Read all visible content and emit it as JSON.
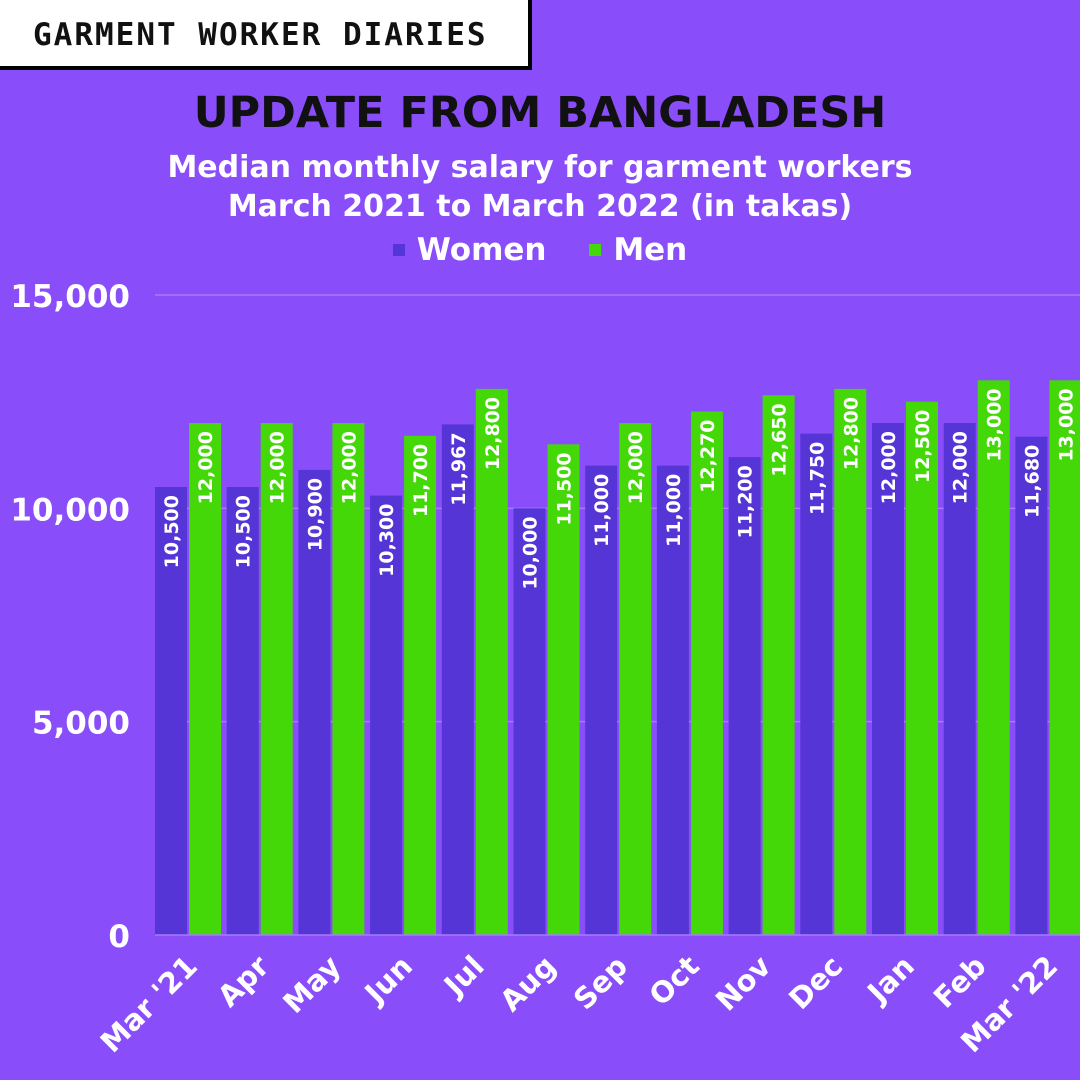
{
  "brand": "GARMENT WORKER DIARIES",
  "title": "UPDATE FROM BANGLADESH",
  "subtitle_line1": "Median monthly salary for garment workers",
  "subtitle_line2": "March 2021 to March 2022 (in takas)",
  "colors": {
    "background": "#8a4dfa",
    "women": "#5535d6",
    "men": "#44d808",
    "grid": "#a47cfb"
  },
  "chart_data": {
    "type": "bar",
    "categories": [
      "Mar '21",
      "Apr",
      "May",
      "Jun",
      "Jul",
      "Aug",
      "Sep",
      "Oct",
      "Nov",
      "Dec",
      "Jan",
      "Feb",
      "Mar '22"
    ],
    "series": [
      {
        "name": "Women",
        "values": [
          10500,
          10500,
          10900,
          10300,
          11967,
          10000,
          11000,
          11000,
          11200,
          11750,
          12000,
          12000,
          11680
        ],
        "labels": [
          "10,500",
          "10,500",
          "10,900",
          "10,300",
          "11,967",
          "10,000",
          "11,000",
          "11,000",
          "11,200",
          "11,750",
          "12,000",
          "12,000",
          "11,680"
        ]
      },
      {
        "name": "Men",
        "values": [
          12000,
          12000,
          12000,
          11700,
          12800,
          11500,
          12000,
          12270,
          12650,
          12800,
          12500,
          13000,
          13000
        ],
        "labels": [
          "12,000",
          "12,000",
          "12,000",
          "11,700",
          "12,800",
          "11,500",
          "12,000",
          "12,270",
          "12,650",
          "12,800",
          "12,500",
          "13,000",
          "13,000"
        ]
      }
    ],
    "yticks": [
      0,
      5000,
      10000,
      15000
    ],
    "ytick_labels": [
      "0",
      "5,000",
      "10,000",
      "15,000"
    ],
    "ylim": [
      0,
      15000
    ],
    "grid": true,
    "legend": "top-center"
  }
}
